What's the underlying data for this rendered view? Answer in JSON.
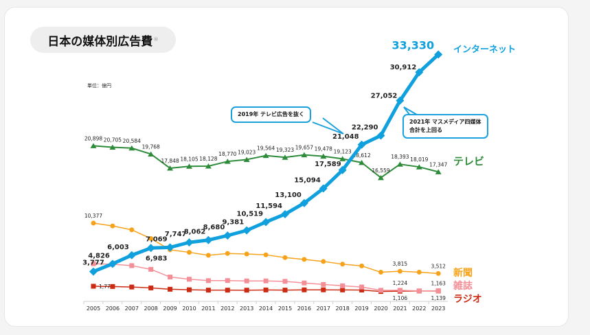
{
  "title": "日本の媒体別広告費",
  "title_note": "※",
  "unit": "単位：億円",
  "callouts": [
    "2019年 テレビ広告を抜く",
    "2021年 マスメディア四媒体合計を上回る"
  ],
  "callout_lines": [
    "2021年 マスメディア四媒体",
    "合計を上回る"
  ],
  "colors": {
    "internet": "#0fa0dd",
    "tv": "#2e8b3a",
    "newspaper": "#f7a21b",
    "magazine": "#f58f97",
    "radio": "#cc2a12"
  },
  "chart_data": {
    "type": "line",
    "title": "日本の媒体別広告費",
    "ylabel": "単位：億円",
    "categories": [
      "2005",
      "2006",
      "2007",
      "2008",
      "2009",
      "2010",
      "2011",
      "2012",
      "2013",
      "2014",
      "2015",
      "2016",
      "2017",
      "2018",
      "2019",
      "2020",
      "2021",
      "2022",
      "2023"
    ],
    "ylim": [
      0,
      35000
    ],
    "grid": false,
    "series": [
      {
        "name": "インターネット",
        "key": "internet",
        "marker": "diamond",
        "values": [
          3777,
          4826,
          6003,
          6983,
          7069,
          7747,
          8062,
          8680,
          9381,
          10519,
          11594,
          13100,
          15094,
          17589,
          21048,
          22290,
          27052,
          30912,
          33330
        ],
        "labels": [
          "3,777",
          "4,826",
          "6,003",
          "6,983",
          "7,069",
          "7,747",
          "8,062",
          "8,680",
          "9,381",
          "10,519",
          "11,594",
          "13,100",
          "15,094",
          "17,589",
          "21,048",
          "22,290",
          "27,052",
          "30,912",
          "33,330"
        ]
      },
      {
        "name": "テレビ",
        "key": "tv",
        "marker": "triangle",
        "values": [
          20898,
          20705,
          20584,
          19768,
          17848,
          18105,
          18128,
          18770,
          19023,
          19564,
          19323,
          19657,
          19478,
          19123,
          18612,
          16559,
          18393,
          18019,
          17347
        ],
        "labels": [
          "20,898",
          "20,705",
          "20,584",
          "19,768",
          "17,848",
          "18,105",
          "18,128",
          "18,770",
          "19,023",
          "19,564",
          "19,323",
          "19,657",
          "19,478",
          "19,123",
          "18,612",
          "16,559",
          "18,393",
          "18,019",
          "17,347"
        ]
      },
      {
        "name": "新聞",
        "key": "newspaper",
        "marker": "circle",
        "values": [
          10377,
          9986,
          9462,
          8276,
          6739,
          6396,
          5990,
          6242,
          6170,
          6057,
          5679,
          5431,
          5147,
          4784,
          4547,
          3688,
          3815,
          3697,
          3512
        ],
        "labels": [
          "10,377",
          null,
          null,
          null,
          null,
          null,
          null,
          null,
          null,
          null,
          null,
          null,
          null,
          null,
          null,
          null,
          "3,815",
          null,
          "3,512"
        ]
      },
      {
        "name": "雑誌",
        "key": "magazine",
        "marker": "square",
        "values": [
          4842,
          4777,
          4585,
          4078,
          3034,
          2733,
          2542,
          2551,
          2499,
          2500,
          2443,
          2223,
          2023,
          1841,
          1675,
          1223,
          1224,
          1140,
          1163
        ],
        "labels": [
          null,
          null,
          null,
          null,
          null,
          null,
          null,
          null,
          null,
          null,
          null,
          null,
          null,
          null,
          null,
          null,
          "1,224",
          null,
          "1,163"
        ]
      },
      {
        "name": "ラジオ",
        "key": "radio",
        "marker": "square",
        "values": [
          1778,
          1744,
          1671,
          1549,
          1370,
          1299,
          1247,
          1246,
          1243,
          1272,
          1254,
          1285,
          1290,
          1278,
          1260,
          1066,
          1106,
          1129,
          1139
        ],
        "labels": [
          "1,778",
          null,
          null,
          null,
          null,
          null,
          null,
          null,
          null,
          null,
          null,
          null,
          null,
          null,
          null,
          null,
          "1,106",
          null,
          "1,139"
        ]
      }
    ]
  }
}
